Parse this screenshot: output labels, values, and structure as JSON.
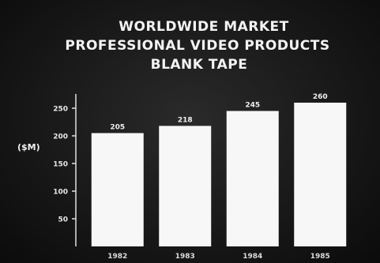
{
  "chart_data": {
    "type": "bar",
    "title": [
      "WORLDWIDE MARKET",
      "PROFESSIONAL VIDEO PRODUCTS",
      "BLANK TAPE"
    ],
    "ylabel": "($M)",
    "xlabel": "",
    "categories": [
      "1982",
      "1983",
      "1984",
      "1985"
    ],
    "values": [
      205,
      218,
      245,
      260
    ],
    "data_labels": [
      "205",
      "218",
      "245",
      "260"
    ],
    "yticks": [
      50,
      100,
      150,
      200,
      250
    ],
    "ylim": [
      0,
      300
    ],
    "grid": false,
    "legend": "none",
    "colors": {
      "background": "#141414",
      "bar": "#f7f7f7",
      "text": "#f0f0f0",
      "axis": "#e0e0e0"
    }
  }
}
